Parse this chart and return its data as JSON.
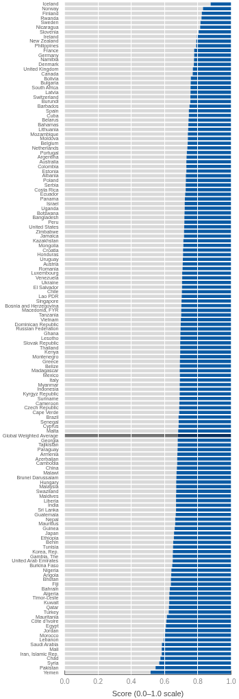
{
  "chart_data": {
    "type": "bar",
    "orientation": "horizontal",
    "stacked": true,
    "xlabel": "Score (0.0–1.0 scale)",
    "xlim": [
      0,
      1
    ],
    "xticks": [
      {
        "value": 0,
        "label": "0.0"
      },
      {
        "value": 0.2,
        "label": "0.2"
      },
      {
        "value": 0.4,
        "label": "0.4"
      },
      {
        "value": 0.6,
        "label": "0.6"
      },
      {
        "value": 0.8,
        "label": "0.8"
      },
      {
        "value": 1,
        "label": "1.0"
      }
    ],
    "grid": "x",
    "categories": [
      "Iceland",
      "Norway",
      "Finland",
      "Rwanda",
      "Sweden",
      "Nicaragua",
      "Slovenia",
      "Ireland",
      "New Zealand",
      "Philippines",
      "France",
      "Germany",
      "Namibia",
      "Denmark",
      "United Kingdom",
      "Canada",
      "Bolivia",
      "Bulgaria",
      "South Africa",
      "Latvia",
      "Switzerland",
      "Burundi",
      "Barbados",
      "Spain",
      "Cuba",
      "Belarus",
      "Bahamas",
      "Lithuania",
      "Mozambique",
      "Moldova",
      "Belgium",
      "Netherlands",
      "Portugal",
      "Argentina",
      "Australia",
      "Colombia",
      "Estonia",
      "Albania",
      "Poland",
      "Serbia",
      "Costa Rica",
      "Ecuador",
      "Panama",
      "Israel",
      "Uganda",
      "Botswana",
      "Bangladesh",
      "Peru",
      "United States",
      "Zimbabwe",
      "Jamaica",
      "Kazakhstan",
      "Mongolia",
      "Croatia",
      "Honduras",
      "Uruguay",
      "Austria",
      "Romania",
      "Luxembourg",
      "Venezuela",
      "Ukraine",
      "El Salvador",
      "Chile",
      "Lao PDR",
      "Singapore",
      "Bosnia and Herzegovina",
      "Macedonia, FYR",
      "Tanzania",
      "Vietnam",
      "Dominican Republic",
      "Russian Federation",
      "Ghana",
      "Lesotho",
      "Slovak Republic",
      "Thailand",
      "Kenya",
      "Montenegro",
      "Greece",
      "Belize",
      "Madagascar",
      "Mexico",
      "Italy",
      "Myanmar",
      "Indonesia",
      "Kyrgyz Republic",
      "Suriname",
      "Cameroon",
      "Czech Republic",
      "Cape Verde",
      "Brazil",
      "Senegal",
      "Cyprus",
      "Malta",
      "Global Weighted Average",
      "Georgia",
      "Tajikistan",
      "Paraguay",
      "Armenia",
      "Azerbaijan",
      "Cambodia",
      "China",
      "Malawi",
      "Brunei Darussalam",
      "Hungary",
      "Malaysia",
      "Swaziland",
      "Maldives",
      "Liberia",
      "India",
      "Sri Lanka",
      "Guatemala",
      "Nepal",
      "Mauritius",
      "Guinea",
      "Japan",
      "Ethiopia",
      "Benin",
      "Tunisia",
      "Korea, Rep.",
      "Gambia, The",
      "United Arab Emirates",
      "Burkina Faso",
      "Nigeria",
      "Angola",
      "Bhutan",
      "Fiji",
      "Bahrain",
      "Algeria",
      "Timor-Leste",
      "Kuwait",
      "Qatar",
      "Turkey",
      "Mauritania",
      "Côte d'Ivoire",
      "Egypt",
      "Jordan",
      "Morocco",
      "Lebanon",
      "Saudi Arabia",
      "Mali",
      "Iran, Islamic Rep.",
      "Chad",
      "Syria",
      "Pakistan",
      "Yemen"
    ],
    "series": [
      {
        "color": "#d9d9d9",
        "colors": [
          null,
          null,
          null,
          null,
          null,
          null,
          null,
          null,
          null,
          null,
          null,
          null,
          null,
          null,
          null,
          null,
          null,
          null,
          null,
          null,
          null,
          null,
          null,
          null,
          null,
          null,
          null,
          null,
          null,
          null,
          null,
          null,
          null,
          null,
          null,
          null,
          null,
          null,
          null,
          null,
          null,
          null,
          null,
          null,
          null,
          null,
          null,
          null,
          null,
          null,
          null,
          null,
          null,
          null,
          null,
          null,
          null,
          null,
          null,
          null,
          null,
          null,
          null,
          null,
          null,
          null,
          null,
          null,
          null,
          null,
          null,
          null,
          null,
          null,
          null,
          null,
          null,
          null,
          null,
          null,
          null,
          null,
          null,
          null,
          null,
          null,
          null,
          null,
          null,
          null,
          null,
          null,
          null,
          "#737373",
          null,
          null,
          null,
          null,
          null,
          null,
          null,
          null,
          null,
          null,
          null,
          null,
          null,
          null,
          null,
          null,
          null,
          null,
          null,
          null,
          null,
          null,
          null,
          null,
          null,
          null,
          null,
          null,
          null,
          null,
          null,
          null,
          null,
          null,
          null,
          null,
          null,
          null,
          null,
          null,
          null,
          null,
          null,
          null,
          null,
          null,
          null,
          null,
          null,
          null,
          null
        ],
        "values": [
          0.877,
          0.831,
          0.824,
          0.822,
          0.816,
          0.814,
          0.805,
          0.795,
          0.791,
          0.79,
          0.778,
          0.778,
          0.777,
          0.776,
          0.77,
          0.769,
          0.758,
          0.757,
          0.756,
          0.756,
          0.755,
          0.755,
          0.75,
          0.746,
          0.746,
          0.744,
          0.743,
          0.742,
          0.74,
          0.74,
          0.739,
          0.737,
          0.734,
          0.732,
          0.731,
          0.731,
          0.731,
          0.728,
          0.728,
          0.727,
          0.727,
          0.724,
          0.722,
          0.721,
          0.721,
          0.72,
          0.719,
          0.719,
          0.718,
          0.717,
          0.717,
          0.713,
          0.713,
          0.711,
          0.711,
          0.71,
          0.709,
          0.708,
          0.706,
          0.706,
          0.705,
          0.705,
          0.704,
          0.703,
          0.702,
          0.701,
          0.7,
          0.7,
          0.698,
          0.697,
          0.696,
          0.695,
          0.695,
          0.694,
          0.694,
          0.694,
          0.693,
          0.692,
          0.692,
          0.691,
          0.692,
          0.692,
          0.691,
          0.691,
          0.691,
          0.69,
          0.689,
          0.688,
          0.688,
          0.684,
          0.685,
          0.684,
          0.682,
          0.68,
          0.679,
          0.679,
          0.678,
          0.677,
          0.676,
          0.676,
          0.674,
          0.672,
          0.671,
          0.67,
          0.67,
          0.67,
          0.669,
          0.669,
          0.669,
          0.669,
          0.667,
          0.664,
          0.664,
          0.661,
          0.657,
          0.656,
          0.652,
          0.651,
          0.65,
          0.649,
          0.649,
          0.646,
          0.641,
          0.64,
          0.638,
          0.638,
          0.632,
          0.629,
          0.628,
          0.628,
          0.626,
          0.625,
          0.614,
          0.611,
          0.608,
          0.604,
          0.598,
          0.596,
          0.584,
          0.583,
          0.583,
          0.575,
          0.568,
          0.546,
          0.516
        ]
      },
      {
        "color": "#0b5aa3",
        "colors": [
          null,
          null,
          null,
          null,
          null,
          null,
          null,
          null,
          null,
          null,
          null,
          null,
          null,
          null,
          null,
          null,
          null,
          null,
          null,
          null,
          null,
          null,
          null,
          null,
          null,
          null,
          null,
          null,
          null,
          null,
          null,
          null,
          null,
          null,
          null,
          null,
          null,
          null,
          null,
          null,
          null,
          null,
          null,
          null,
          null,
          null,
          null,
          null,
          null,
          null,
          null,
          null,
          null,
          null,
          null,
          null,
          null,
          null,
          null,
          null,
          null,
          null,
          null,
          null,
          null,
          null,
          null,
          null,
          null,
          null,
          null,
          null,
          null,
          null,
          null,
          null,
          null,
          null,
          null,
          null,
          null,
          null,
          null,
          null,
          null,
          null,
          null,
          null,
          null,
          null,
          null,
          null,
          null,
          "#0a2f5c",
          null,
          null,
          null,
          null,
          null,
          null,
          null,
          null,
          null,
          null,
          null,
          null,
          null,
          null,
          null,
          null,
          null,
          null,
          null,
          null,
          null,
          null,
          null,
          null,
          null,
          null,
          null,
          null,
          null,
          null,
          null,
          null,
          null,
          null,
          null,
          null,
          null,
          null,
          null,
          null,
          null,
          null,
          null,
          null,
          null,
          null,
          null,
          null,
          null,
          null,
          null
        ],
        "values": [
          0.123,
          0.169,
          0.176,
          0.178,
          0.184,
          0.186,
          0.195,
          0.205,
          0.209,
          0.21,
          0.222,
          0.222,
          0.223,
          0.224,
          0.23,
          0.231,
          0.242,
          0.243,
          0.244,
          0.244,
          0.245,
          0.245,
          0.25,
          0.254,
          0.254,
          0.256,
          0.257,
          0.258,
          0.26,
          0.26,
          0.261,
          0.263,
          0.266,
          0.268,
          0.269,
          0.269,
          0.269,
          0.272,
          0.272,
          0.273,
          0.273,
          0.276,
          0.278,
          0.279,
          0.279,
          0.28,
          0.281,
          0.281,
          0.282,
          0.283,
          0.283,
          0.287,
          0.287,
          0.289,
          0.289,
          0.29,
          0.291,
          0.292,
          0.294,
          0.294,
          0.295,
          0.295,
          0.296,
          0.297,
          0.298,
          0.299,
          0.3,
          0.3,
          0.302,
          0.303,
          0.304,
          0.305,
          0.305,
          0.306,
          0.306,
          0.306,
          0.307,
          0.308,
          0.308,
          0.309,
          0.308,
          0.308,
          0.309,
          0.309,
          0.309,
          0.31,
          0.311,
          0.312,
          0.312,
          0.316,
          0.315,
          0.316,
          0.318,
          0.32,
          0.321,
          0.321,
          0.322,
          0.323,
          0.324,
          0.324,
          0.326,
          0.328,
          0.329,
          0.33,
          0.33,
          0.33,
          0.331,
          0.331,
          0.331,
          0.331,
          0.333,
          0.336,
          0.336,
          0.339,
          0.343,
          0.344,
          0.348,
          0.349,
          0.35,
          0.351,
          0.351,
          0.354,
          0.359,
          0.36,
          0.362,
          0.362,
          0.368,
          0.371,
          0.372,
          0.372,
          0.374,
          0.375,
          0.386,
          0.389,
          0.392,
          0.396,
          0.402,
          0.404,
          0.416,
          0.417,
          0.417,
          0.425,
          0.432,
          0.454,
          0.484
        ]
      }
    ]
  }
}
